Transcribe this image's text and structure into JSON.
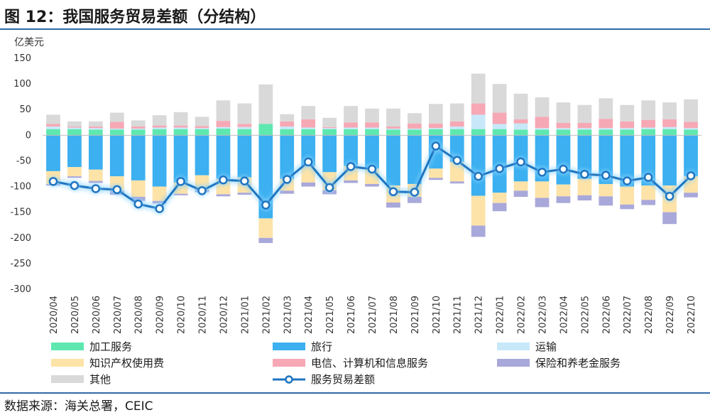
{
  "title": "图 12：我国服务贸易差额（分结构）",
  "source": "数据来源：海关总署，CEIC",
  "chart_data": {
    "type": "bar",
    "stacked": true,
    "y_unit_label": "亿美元",
    "ylim": [
      -300,
      150
    ],
    "yticks": [
      150,
      100,
      50,
      0,
      -50,
      -100,
      -150,
      -200,
      -250,
      -300
    ],
    "categories": [
      "2020/04",
      "2020/05",
      "2020/06",
      "2020/07",
      "2020/08",
      "2020/09",
      "2020/10",
      "2020/11",
      "2020/12",
      "2021/01",
      "2021/02",
      "2021/03",
      "2021/04",
      "2021/05",
      "2021/06",
      "2021/07",
      "2021/08",
      "2021/09",
      "2021/10",
      "2021/11",
      "2021/12",
      "2022/01",
      "2022/02",
      "2022/03",
      "2022/04",
      "2022/05",
      "2022/06",
      "2022/07",
      "2022/08",
      "2022/09",
      "2022/10"
    ],
    "series": [
      {
        "name": "加工服务",
        "color": "#5ee8b0",
        "values": [
          12,
          12,
          11,
          11,
          11,
          12,
          12,
          12,
          13,
          12,
          22,
          12,
          12,
          12,
          12,
          12,
          11,
          11,
          12,
          12,
          12,
          12,
          11,
          11,
          11,
          11,
          11,
          11,
          12,
          12,
          11
        ]
      },
      {
        "name": "旅行",
        "color": "#3cb0f0",
        "values": [
          -70,
          -62,
          -67,
          -80,
          -88,
          -100,
          -92,
          -78,
          -85,
          -82,
          -162,
          -85,
          -60,
          -72,
          -60,
          -65,
          -98,
          -95,
          -65,
          -52,
          -118,
          -112,
          -90,
          -90,
          -96,
          -85,
          -95,
          -100,
          -98,
          -98,
          -80
        ]
      },
      {
        "name": "运输",
        "color": "#c8e8fa",
        "values": [
          5,
          3,
          3,
          2,
          2,
          3,
          3,
          2,
          3,
          4,
          0,
          5,
          3,
          2,
          3,
          3,
          2,
          2,
          2,
          5,
          28,
          10,
          12,
          3,
          3,
          3,
          3,
          3,
          3,
          4,
          3
        ]
      },
      {
        "name": "知识产权使用费",
        "color": "#fde3a8",
        "values": [
          -25,
          -18,
          -22,
          -28,
          -32,
          -28,
          -22,
          -28,
          -30,
          -30,
          -38,
          -23,
          -32,
          -35,
          -28,
          -30,
          -33,
          -25,
          -18,
          -38,
          -58,
          -20,
          -18,
          -32,
          -23,
          -32,
          -24,
          -35,
          -28,
          -52,
          -32
        ]
      },
      {
        "name": "电信、计算机和信息服务",
        "color": "#f6a8b4",
        "values": [
          5,
          2,
          3,
          13,
          4,
          4,
          4,
          4,
          12,
          6,
          0,
          10,
          16,
          2,
          10,
          10,
          4,
          10,
          9,
          10,
          22,
          22,
          8,
          22,
          10,
          10,
          18,
          13,
          15,
          15,
          12
        ]
      },
      {
        "name": "保险和养老金服务",
        "color": "#a9a8da",
        "values": [
          -3,
          -3,
          -4,
          -8,
          -8,
          -5,
          -3,
          -5,
          -4,
          -4,
          -10,
          -6,
          -8,
          -8,
          -5,
          -5,
          -10,
          -12,
          -4,
          -4,
          -22,
          -16,
          -12,
          -18,
          -13,
          -10,
          -18,
          -9,
          -10,
          -23,
          -9
        ]
      },
      {
        "name": "其他",
        "color": "#d9d9d9",
        "values": [
          18,
          10,
          10,
          18,
          12,
          20,
          26,
          18,
          40,
          40,
          77,
          14,
          26,
          18,
          32,
          27,
          35,
          20,
          38,
          35,
          58,
          56,
          50,
          38,
          40,
          35,
          40,
          32,
          38,
          33,
          44
        ]
      }
    ],
    "line": {
      "name": "服务贸易差额",
      "color": "#1e75c0",
      "values": [
        -90,
        -98,
        -104,
        -106,
        -134,
        -143,
        -90,
        -108,
        -87,
        -89,
        -136,
        -86,
        -52,
        -102,
        -61,
        -66,
        -110,
        -111,
        -21,
        -49,
        -80,
        -65,
        -52,
        -72,
        -66,
        -76,
        -78,
        -89,
        -82,
        -119,
        -79
      ]
    },
    "legend": {
      "position": "bottom",
      "rows": [
        [
          "加工服务",
          "旅行",
          "运输"
        ],
        [
          "知识产权使用费",
          "电信、计算机和信息服务",
          "保险和养老金服务"
        ],
        [
          "其他",
          "服务贸易差额"
        ]
      ]
    }
  }
}
